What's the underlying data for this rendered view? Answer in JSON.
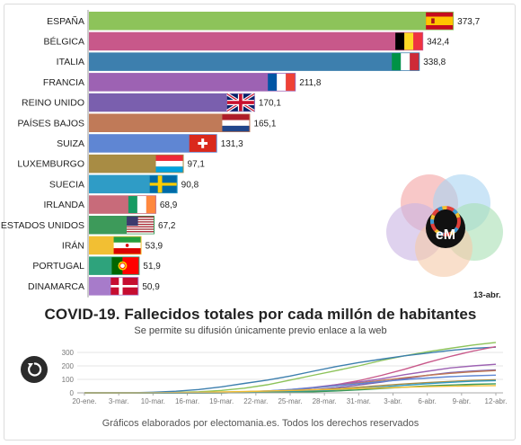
{
  "chart_data": [
    {
      "type": "bar",
      "orientation": "horizontal",
      "title": "COVID-19. Fallecidos totales por cada millón de habitantes",
      "subtitle": "Se permite su difusión únicamente previo enlace a la web",
      "date": "13-abr.",
      "categories": [
        "ESPAÑA",
        "BÉLGICA",
        "ITALIA",
        "FRANCIA",
        "REINO UNIDO",
        "PAÍSES BAJOS",
        "SUIZA",
        "LUXEMBURGO",
        "SUECIA",
        "IRLANDA",
        "ESTADOS UNIDOS",
        "IRÁN",
        "PORTUGAL",
        "DINAMARCA"
      ],
      "values": [
        373.7,
        342.4,
        338.8,
        211.8,
        170.1,
        165.1,
        131.3,
        97.1,
        90.8,
        68.9,
        67.2,
        53.9,
        51.9,
        50.9
      ],
      "value_labels": [
        "373,7",
        "342,4",
        "338,8",
        "211,8",
        "170,1",
        "165,1",
        "131,3",
        "97,1",
        "90,8",
        "68,9",
        "67,2",
        "53,9",
        "51,9",
        "50,9"
      ],
      "colors": [
        "#8dc35a",
        "#c8588a",
        "#3d7fae",
        "#9d62b3",
        "#7a5fae",
        "#c07a58",
        "#5f86d3",
        "#a88c44",
        "#2f9cc6",
        "#c86b7a",
        "#3d9a5a",
        "#f2bf33",
        "#2ea37c",
        "#a77bca"
      ],
      "flags": [
        "spain-flag",
        "belgium-flag",
        "italy-flag",
        "france-flag",
        "uk-flag",
        "netherlands-flag",
        "switzerland-flag",
        "luxembourg-flag",
        "sweden-flag",
        "ireland-flag",
        "usa-flag",
        "iran-flag",
        "portugal-flag",
        "denmark-flag"
      ],
      "xlim": [
        0,
        380
      ]
    },
    {
      "type": "line",
      "x_ticks": [
        "20-ene.",
        "3-mar.",
        "10-mar.",
        "16-mar.",
        "19-mar.",
        "22-mar.",
        "25-mar.",
        "28-mar.",
        "31-mar.",
        "3-abr.",
        "6-abr.",
        "9-abr.",
        "12-abr."
      ],
      "y_ticks": [
        "0",
        "100",
        "200",
        "300"
      ],
      "ylim": [
        0,
        380
      ],
      "series": [
        {
          "color": "#8dc35a",
          "values": [
            0,
            0,
            0,
            1,
            3,
            8,
            18,
            35,
            60,
            95,
            130,
            165,
            200,
            240,
            275,
            305,
            330,
            355,
            373.7
          ]
        },
        {
          "color": "#3d7fae",
          "values": [
            0,
            0,
            1,
            5,
            12,
            25,
            45,
            70,
            95,
            125,
            160,
            195,
            225,
            250,
            275,
            295,
            315,
            330,
            338.8
          ]
        },
        {
          "color": "#c8588a",
          "values": [
            0,
            0,
            0,
            0,
            0,
            1,
            2,
            5,
            10,
            20,
            35,
            60,
            90,
            130,
            175,
            225,
            270,
            310,
            342.4
          ]
        },
        {
          "color": "#9d62b3",
          "values": [
            0,
            0,
            0,
            0,
            1,
            2,
            4,
            8,
            14,
            25,
            40,
            60,
            80,
            105,
            135,
            160,
            185,
            200,
            211.8
          ]
        },
        {
          "color": "#7a5fae",
          "values": [
            0,
            0,
            0,
            0,
            0,
            0,
            1,
            3,
            6,
            12,
            22,
            38,
            58,
            80,
            105,
            130,
            150,
            162,
            170.1
          ]
        },
        {
          "color": "#c07a58",
          "values": [
            0,
            0,
            0,
            0,
            0,
            1,
            3,
            6,
            12,
            22,
            35,
            52,
            72,
            92,
            112,
            130,
            145,
            157,
            165.1
          ]
        },
        {
          "color": "#5f86d3",
          "values": [
            0,
            0,
            0,
            0,
            1,
            2,
            4,
            8,
            15,
            25,
            38,
            52,
            68,
            84,
            98,
            110,
            120,
            127,
            131.3
          ]
        },
        {
          "color": "#a88c44",
          "values": [
            0,
            0,
            0,
            0,
            0,
            0,
            1,
            3,
            6,
            12,
            20,
            30,
            42,
            55,
            66,
            76,
            85,
            92,
            97.1
          ]
        },
        {
          "color": "#2f9cc6",
          "values": [
            0,
            0,
            0,
            0,
            0,
            0,
            1,
            2,
            4,
            8,
            14,
            22,
            32,
            44,
            56,
            68,
            78,
            86,
            90.8
          ]
        },
        {
          "color": "#3d9a5a",
          "values": [
            0,
            0,
            0,
            0,
            0,
            0,
            0,
            1,
            2,
            4,
            8,
            14,
            22,
            32,
            42,
            52,
            58,
            63,
            67.2
          ]
        },
        {
          "color": "#f2bf33",
          "values": [
            0,
            0,
            0,
            1,
            2,
            4,
            7,
            10,
            14,
            18,
            22,
            27,
            32,
            37,
            42,
            46,
            49,
            52,
            53.9
          ]
        }
      ]
    }
  ],
  "timeline_chart_label": "",
  "footer": "Gráficos elaborados por electomania.es. Todos los derechos reservados",
  "logo_text": "eM"
}
